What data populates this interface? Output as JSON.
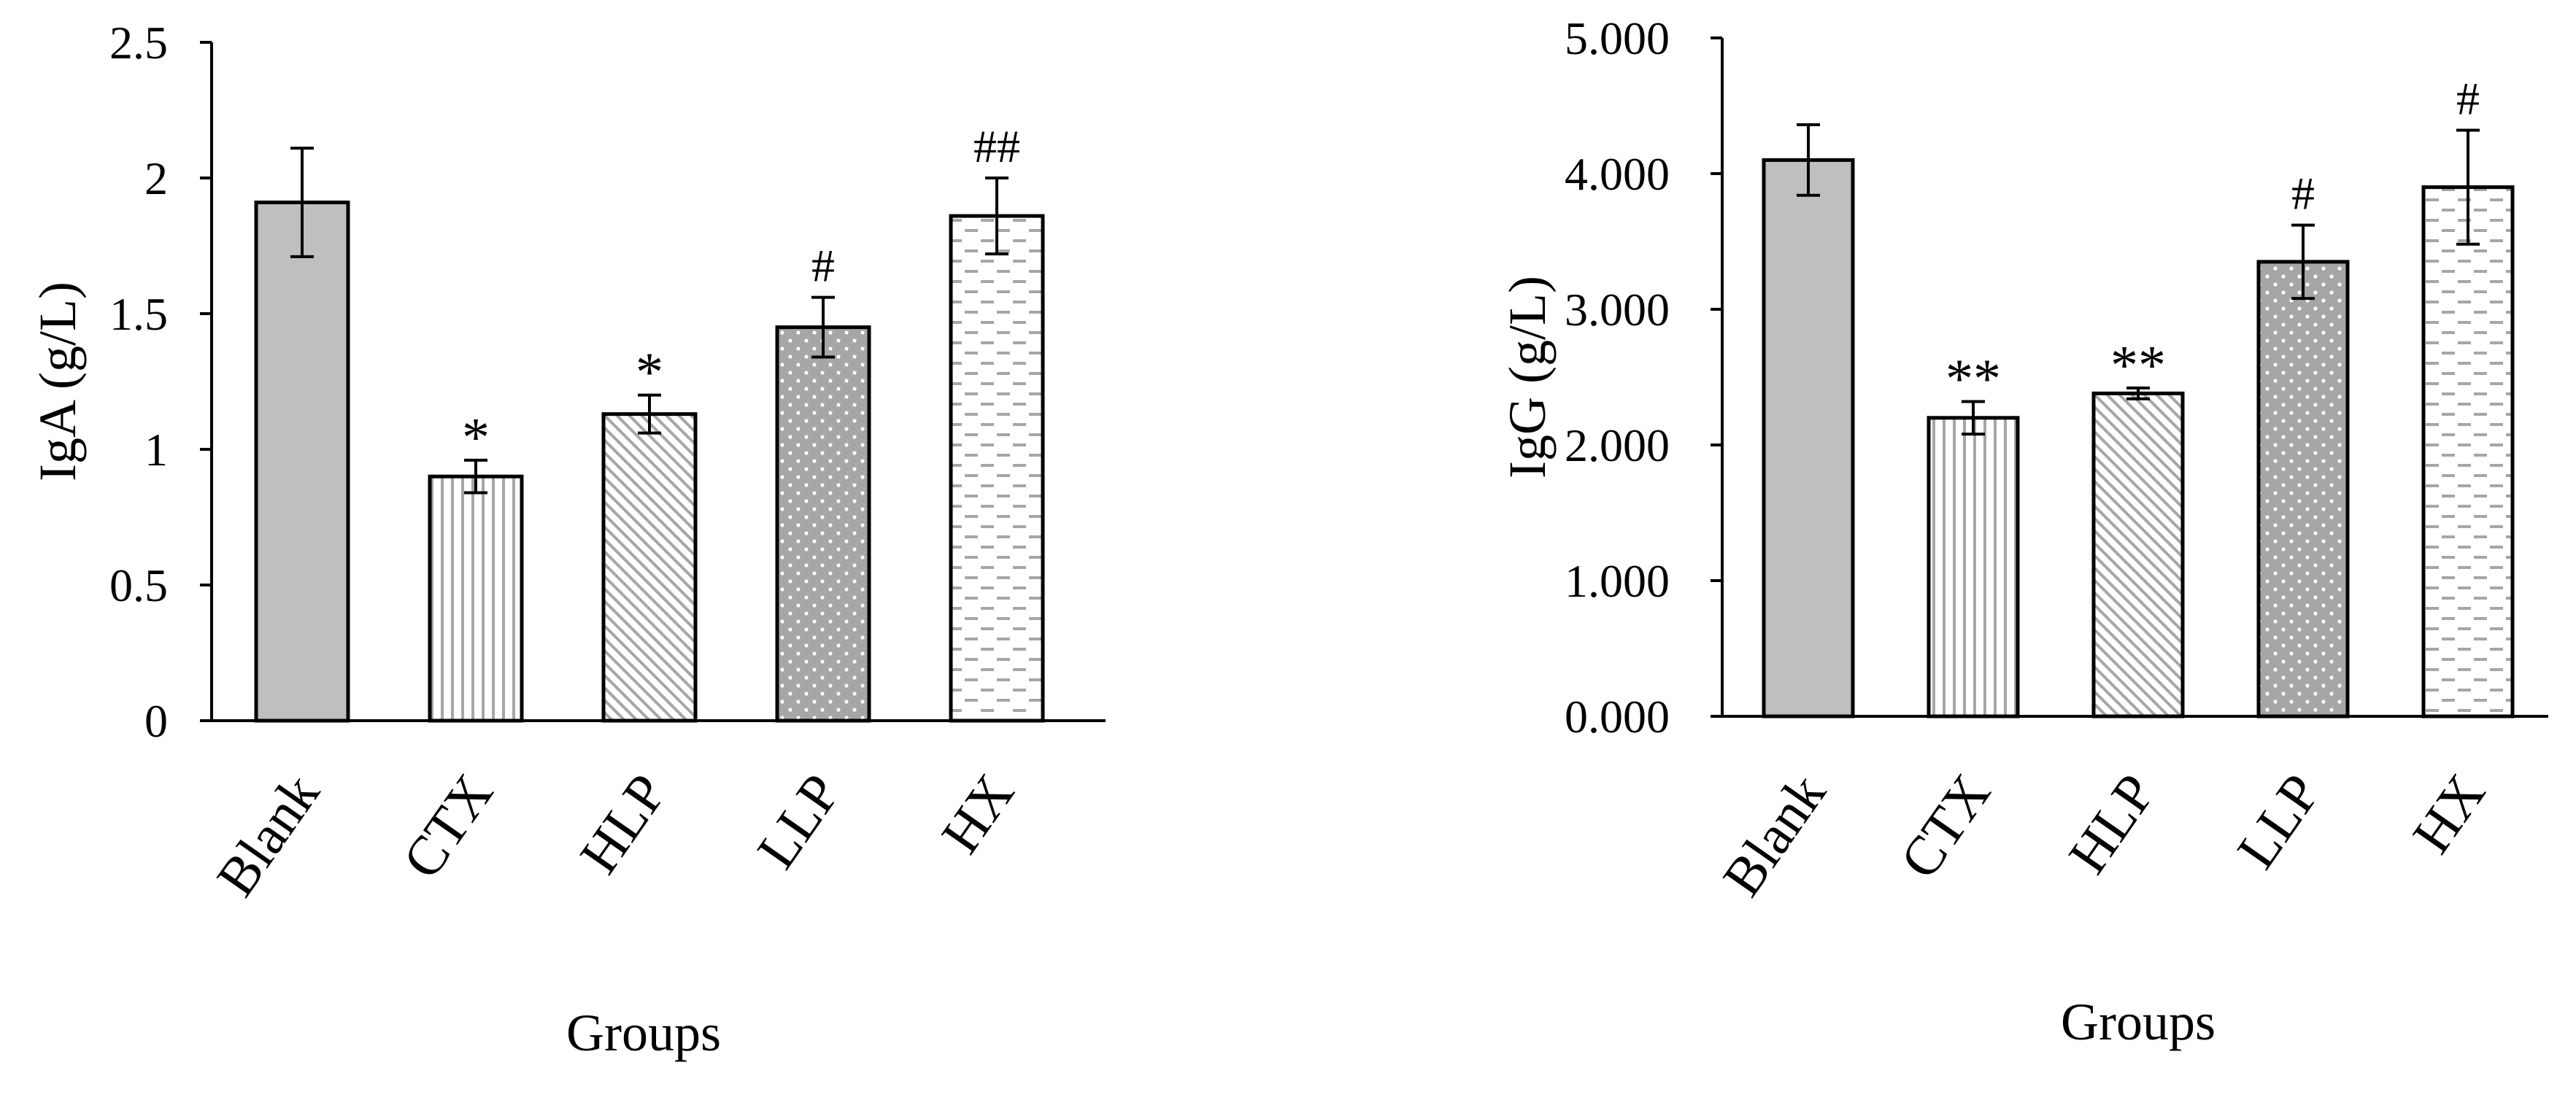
{
  "chart_data": [
    {
      "type": "bar",
      "title": "",
      "xlabel": "Groups",
      "ylabel": "IgA (g/L)",
      "ylim": [
        0,
        2.5
      ],
      "yticks": [
        "0",
        "0.5",
        "1",
        "1.5",
        "2",
        "2.5"
      ],
      "grid": false,
      "categories": [
        "Blank",
        "CTX",
        "HLP",
        "LLP",
        "HX"
      ],
      "values": [
        1.91,
        0.9,
        1.13,
        1.45,
        1.86
      ],
      "errors": [
        0.2,
        0.06,
        0.07,
        0.11,
        0.14
      ],
      "annotations": [
        "",
        "*",
        "*",
        "#",
        "##"
      ],
      "patterns": [
        "solid-gray",
        "vertical-lines",
        "diagonal-lines",
        "dots",
        "dashes"
      ]
    },
    {
      "type": "bar",
      "title": "",
      "xlabel": "Groups",
      "ylabel": "IgG (g/L)",
      "ylim": [
        0,
        5
      ],
      "yticks": [
        "0.000",
        "1.000",
        "2.000",
        "3.000",
        "4.000",
        "5.000"
      ],
      "grid": false,
      "categories": [
        "Blank",
        "CTX",
        "HLP",
        "LLP",
        "HX"
      ],
      "values": [
        4.1,
        2.2,
        2.38,
        3.35,
        3.9
      ],
      "errors": [
        0.26,
        0.12,
        0.04,
        0.27,
        0.42
      ],
      "annotations": [
        "",
        "**",
        "**",
        "#",
        "#"
      ],
      "patterns": [
        "solid-gray",
        "vertical-lines",
        "diagonal-lines",
        "dots",
        "dashes"
      ]
    }
  ],
  "colors": {
    "axis": "#000000",
    "solid_fill": "#bfbfbf",
    "pattern_line": "#a6a6a6",
    "dot_bg": "#a6a6a6",
    "dot": "#ffffff"
  }
}
